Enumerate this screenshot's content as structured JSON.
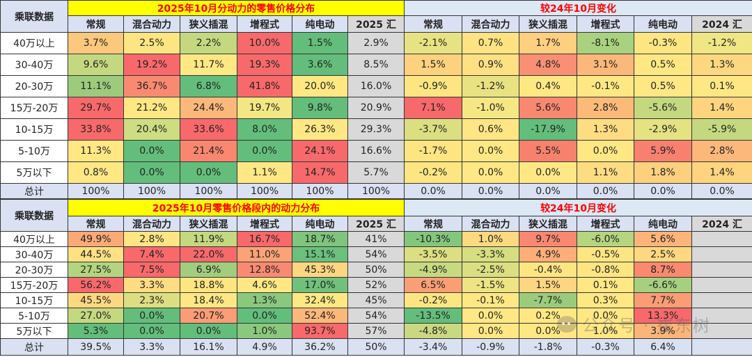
{
  "colors": {
    "title_yellow_bg": "#ffff00",
    "title_text_red": "#ff0000",
    "header_blue_bg": "#d9e1f2",
    "gray_bg": "#d9d9d9",
    "heat_green": "#63be7b",
    "heat_yellow": "#ffeb84",
    "heat_red": "#f8696b"
  },
  "table1": {
    "corner_label": "乘联数据",
    "left_title": "2025年10月分动力的零售价格分布",
    "right_title": "较24年10月变化",
    "left_headers": [
      "常规",
      "混合动力",
      "狭义插混",
      "增程式",
      "纯电动",
      "2025 汇"
    ],
    "right_headers": [
      "常规",
      "混合动力",
      "狭义插混",
      "增程式",
      "纯电动",
      "2024 汇"
    ],
    "rows": [
      {
        "label": "40万以上",
        "left": [
          "3.7%",
          "2.5%",
          "2.2%",
          "10.0%",
          "1.5%",
          "2.9%"
        ],
        "left_bg": [
          "#fcc87c",
          "#fde582",
          "#c4d97f",
          "#f8696b",
          "#63be7b",
          "#d9d9d9"
        ],
        "right": [
          "-2.1%",
          "0.7%",
          "1.7%",
          "-8.1%",
          "-0.3%",
          "-1.2%"
        ],
        "right_bg": [
          "#e8e382",
          "#ffe383",
          "#fecf7f",
          "#a9d27f",
          "#fde682",
          "#f0e683"
        ]
      },
      {
        "label": "30-40万",
        "left": [
          "9.6%",
          "19.2%",
          "11.7%",
          "19.3%",
          "3.6%",
          "8.5%"
        ],
        "left_bg": [
          "#c4d97f",
          "#f8696b",
          "#ffe884",
          "#f8696b",
          "#63be7b",
          "#d9d9d9"
        ],
        "right": [
          "1.5%",
          "0.9%",
          "4.8%",
          "3.1%",
          "0.5%",
          "1.3%"
        ],
        "right_bg": [
          "#fdd27f",
          "#ffe083",
          "#f98f73",
          "#fcb87a",
          "#ffe784",
          "#fed880"
        ]
      },
      {
        "label": "20-30万",
        "left": [
          "11.1%",
          "36.7%",
          "6.8%",
          "41.8%",
          "20.0%",
          "16.0%"
        ],
        "left_bg": [
          "#9ccb7c",
          "#f98a72",
          "#63be7b",
          "#f8696b",
          "#ffe884",
          "#d9d9d9"
        ],
        "right": [
          "-0.9%",
          "-1.2%",
          "0.4%",
          "-0.1%",
          "0.5%",
          "0.1%"
        ],
        "right_bg": [
          "#fde682",
          "#e9e282",
          "#ffe884",
          "#ffe884",
          "#ffe784",
          "#ffe884"
        ]
      },
      {
        "label": "15万-20万",
        "left": [
          "29.7%",
          "21.2%",
          "24.4%",
          "19.7%",
          "9.8%",
          "20.9%"
        ],
        "left_bg": [
          "#f8696b",
          "#ffe884",
          "#fcb87a",
          "#f2e783",
          "#63be7b",
          "#d9d9d9"
        ],
        "right": [
          "7.1%",
          "-1.0%",
          "5.6%",
          "2.8%",
          "-5.6%",
          "1.4%"
        ],
        "right_bg": [
          "#f8696b",
          "#f5e783",
          "#f98870",
          "#fcba79",
          "#c4d97f",
          "#fed47f"
        ]
      },
      {
        "label": "10-15万",
        "left": [
          "33.8%",
          "20.4%",
          "33.6%",
          "8.0%",
          "26.3%",
          "29.3%"
        ],
        "left_bg": [
          "#f8696b",
          "#cddd81",
          "#f8696b",
          "#63be7b",
          "#ffe884",
          "#d9d9d9"
        ],
        "right": [
          "-3.7%",
          "0.6%",
          "-17.9%",
          "1.3%",
          "-2.9%",
          "-5.9%"
        ],
        "right_bg": [
          "#dbdf81",
          "#ffe584",
          "#63be7b",
          "#fedd82",
          "#e4e282",
          "#c4d97f"
        ]
      },
      {
        "label": "5-10万",
        "left": [
          "11.3%",
          "0.0%",
          "21.4%",
          "0.0%",
          "24.1%",
          "16.6%"
        ],
        "left_bg": [
          "#ffe884",
          "#63be7b",
          "#f9876f",
          "#63be7b",
          "#f8696b",
          "#d9d9d9"
        ],
        "right": [
          "-1.7%",
          "0.0%",
          "5.5%",
          "0.0%",
          "5.9%",
          "2.8%"
        ],
        "right_bg": [
          "#fde582",
          "#ffe884",
          "#f8816e",
          "#ffe884",
          "#f8806e",
          "#fcb87a"
        ]
      },
      {
        "label": "5万以下",
        "left": [
          "0.8%",
          "0.0%",
          "0.0%",
          "1.1%",
          "14.7%",
          "5.7%"
        ],
        "left_bg": [
          "#ffe884",
          "#63be7b",
          "#63be7b",
          "#ffe884",
          "#f8696b",
          "#d9d9d9"
        ],
        "right": [
          "-0.2%",
          "0.0%",
          "0.0%",
          "1.1%",
          "1.8%",
          "1.4%"
        ],
        "right_bg": [
          "#fde682",
          "#ffe884",
          "#ffe884",
          "#fedd82",
          "#fdd07e",
          "#fed47f"
        ]
      }
    ],
    "total": {
      "label": "总计",
      "left": [
        "100%",
        "100%",
        "100%",
        "100%",
        "100%",
        "100%"
      ],
      "right": [
        "0.0%",
        "0.0%",
        "0.0%",
        "0.0%",
        "0.0%",
        "0.0%"
      ]
    }
  },
  "table2": {
    "corner_label": "乘联数据",
    "left_title": "2025年10月零售价格段内的动力分布",
    "right_title": "较24年10月变化",
    "left_headers": [
      "常规",
      "混合动力",
      "狭义插混",
      "增程式",
      "纯电动",
      "2025 汇"
    ],
    "right_headers": [
      "常规",
      "混合动力",
      "狭义插混",
      "增程式",
      "纯电动",
      "2024 汇"
    ],
    "rows": [
      {
        "label": "40万以上",
        "left": [
          "49.9%",
          "2.8%",
          "11.9%",
          "16.7%",
          "18.7%",
          "41%"
        ],
        "left_bg": [
          "#fbaa77",
          "#ffe583",
          "#c4d97f",
          "#f8696b",
          "#7fc57d",
          "#d9d9d9"
        ],
        "right": [
          "-10.3%",
          "1.0%",
          "9.7%",
          "-6.0%",
          "5.6%",
          ""
        ],
        "right_bg": [
          "#83c77d",
          "#fed980",
          "#f98870",
          "#b5d57f",
          "#fcb579",
          "#d9d9d9"
        ]
      },
      {
        "label": "30-40万",
        "left": [
          "44.5%",
          "7.4%",
          "22.0%",
          "11.0%",
          "15.1%",
          "54%"
        ],
        "left_bg": [
          "#ffe083",
          "#f8696b",
          "#f8696b",
          "#fba276",
          "#6bc07c",
          "#d9d9d9"
        ],
        "right": [
          "-3.5%",
          "-3.3%",
          "4.9%",
          "-0.5%",
          "2.5%",
          ""
        ],
        "right_bg": [
          "#dbdf81",
          "#d7de81",
          "#fcad78",
          "#fde582",
          "#fed880",
          "#d9d9d9"
        ]
      },
      {
        "label": "20-30万",
        "left": [
          "27.5%",
          "7.5%",
          "6.9%",
          "12.8%",
          "45.3%",
          "50%"
        ],
        "left_bg": [
          "#b3d57f",
          "#f8696b",
          "#a2cd7e",
          "#f98a72",
          "#fed580",
          "#d9d9d9"
        ],
        "right": [
          "-4.9%",
          "-2.5%",
          "-0.4%",
          "-0.8%",
          "8.7%",
          ""
        ],
        "right_bg": [
          "#c8da80",
          "#dcdf81",
          "#fde582",
          "#fde582",
          "#f9896f",
          "#d9d9d9"
        ]
      },
      {
        "label": "15万-20万",
        "left": [
          "56.2%",
          "3.3%",
          "18.8%",
          "4.6%",
          "17.0%",
          "52%"
        ],
        "left_bg": [
          "#f8696b",
          "#fedd82",
          "#fde582",
          "#ffe884",
          "#70c17c",
          "#d9d9d9"
        ],
        "right": [
          "6.5%",
          "-1.5%",
          "1.5%",
          "0.1%",
          "-6.6%",
          ""
        ],
        "right_bg": [
          "#fa9f75",
          "#ede483",
          "#fed580",
          "#ffe884",
          "#a6d07f",
          "#d9d9d9"
        ]
      },
      {
        "label": "10-15万",
        "left": [
          "45.5%",
          "2.3%",
          "18.4%",
          "1.3%",
          "32.4%",
          "45%"
        ],
        "left_bg": [
          "#fed880",
          "#dcdf81",
          "#ffe884",
          "#8ac97d",
          "#ffe884",
          "#d9d9d9"
        ],
        "right": [
          "-0.2%",
          "-0.1%",
          "-7.7%",
          "0.3%",
          "7.7%",
          ""
        ],
        "right_bg": [
          "#fde682",
          "#ffe884",
          "#9ccb7c",
          "#ffe884",
          "#fa9d74",
          "#d9d9d9"
        ]
      },
      {
        "label": "5-10万",
        "left": [
          "27.0%",
          "0.0%",
          "20.7%",
          "0.0%",
          "52.4%",
          "54%"
        ],
        "left_bg": [
          "#c4d97f",
          "#63be7b",
          "#fa9c75",
          "#63be7b",
          "#fcb87a",
          "#d9d9d9"
        ],
        "right": [
          "-13.5%",
          "0.0%",
          "0.2%",
          "0.0%",
          "13.3%",
          ""
        ],
        "right_bg": [
          "#63be7b",
          "#ffe884",
          "#ffe884",
          "#ffe884",
          "#f8696b",
          "#d9d9d9"
        ]
      },
      {
        "label": "5万以下",
        "left": [
          "5.3%",
          "0.0%",
          "0.0%",
          "1.0%",
          "93.7%",
          "57%"
        ],
        "left_bg": [
          "#63be7b",
          "#63be7b",
          "#63be7b",
          "#8ac97d",
          "#f8696b",
          "#d9d9d9"
        ],
        "right": [
          "-4.8%",
          "0.0%",
          "0.0%",
          "1.0%",
          "3.9%",
          ""
        ],
        "right_bg": [
          "#cad981",
          "#ffe884",
          "#ffe884",
          "#ffe884",
          "#fcb579",
          "#d9d9d9"
        ]
      }
    ],
    "total": {
      "label": "总计",
      "left": [
        "39.5%",
        "3.3%",
        "16.1%",
        "4.9%",
        "36.2%",
        "50%"
      ],
      "right": [
        "-3.4%",
        "-0.9%",
        "-1.8%",
        "-0.3%",
        "6.4%",
        ""
      ]
    }
  },
  "watermark": "公众号 · 崔东树"
}
